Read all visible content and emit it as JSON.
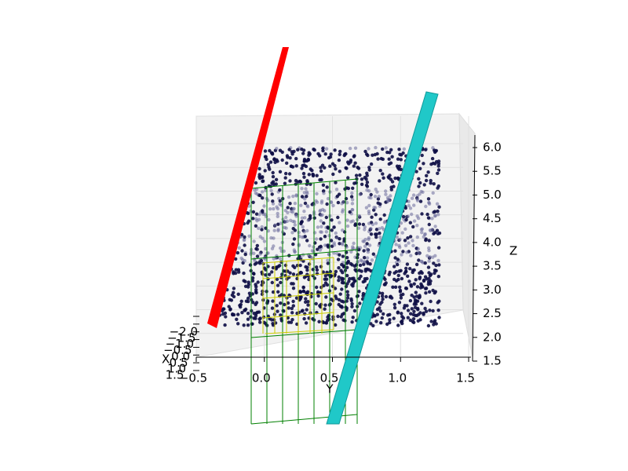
{
  "chart_data": {
    "type": "scatter3d",
    "xlabel": "X",
    "ylabel": "Y",
    "zlabel": "Z",
    "xticks": [
      {
        "value": -2.0,
        "label": "−2.0"
      },
      {
        "value": -1.5,
        "label": "−1.5"
      },
      {
        "value": -1.0,
        "label": "−1.0"
      },
      {
        "value": -0.5,
        "label": "−0.5"
      },
      {
        "value": 0.0,
        "label": "0.0"
      },
      {
        "value": 0.5,
        "label": "0.5"
      },
      {
        "value": 1.0,
        "label": "1.0"
      },
      {
        "value": 1.5,
        "label": "1.5"
      }
    ],
    "xlim": [
      -2.0,
      1.5
    ],
    "yticks": [
      {
        "value": -0.5,
        "label": "−0.5"
      },
      {
        "value": 0.0,
        "label": "0.0"
      },
      {
        "value": 0.5,
        "label": "0.5"
      },
      {
        "value": 1.0,
        "label": "1.0"
      },
      {
        "value": 1.5,
        "label": "1.5"
      }
    ],
    "ylim": [
      -0.5,
      1.5
    ],
    "zticks": [
      {
        "value": 1.5,
        "label": "1.5"
      },
      {
        "value": 2.0,
        "label": "2.0"
      },
      {
        "value": 2.5,
        "label": "2.5"
      },
      {
        "value": 3.0,
        "label": "3.0"
      },
      {
        "value": 3.5,
        "label": "3.5"
      },
      {
        "value": 4.0,
        "label": "4.0"
      },
      {
        "value": 4.5,
        "label": "4.5"
      },
      {
        "value": 5.0,
        "label": "5.0"
      },
      {
        "value": 5.5,
        "label": "5.5"
      },
      {
        "value": 6.0,
        "label": "6.0"
      }
    ],
    "zlim": [
      1.5,
      6.0
    ],
    "grid": true
  }
}
